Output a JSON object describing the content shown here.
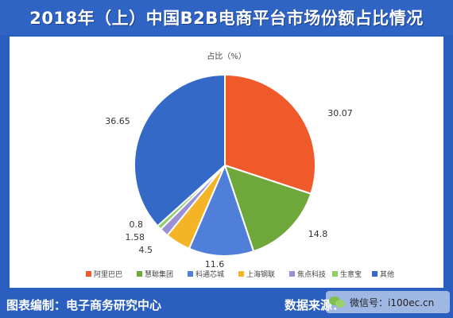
{
  "header": {
    "title": "2018年（上）中国B2B电商平台市场份额占比情况"
  },
  "footer": {
    "compiled_by": "图表编制：电子商务研究中心",
    "source_label": "数据来源："
  },
  "watermark": {
    "text": "微信号：i100ec.cn",
    "icon": "wechat-icon"
  },
  "chart_data": {
    "type": "pie",
    "title": "占比（%）",
    "legend_position": "bottom",
    "series": [
      {
        "name": "阿里巴巴",
        "value": 30.07,
        "label": "30.07",
        "color": "#f05a2a"
      },
      {
        "name": "慧聪集团",
        "value": 14.8,
        "label": "14.8",
        "color": "#6fa83a"
      },
      {
        "name": "科通芯城",
        "value": 11.6,
        "label": "11.6",
        "color": "#4f7fd9"
      },
      {
        "name": "上海钢联",
        "value": 4.5,
        "label": "4.5",
        "color": "#f5b326"
      },
      {
        "name": "焦点科技",
        "value": 1.58,
        "label": "1.58",
        "color": "#9b8fd6"
      },
      {
        "name": "生意宝",
        "value": 0.8,
        "label": "0.8",
        "color": "#8fcf6a"
      },
      {
        "name": "其他",
        "value": 36.65,
        "label": "36.65",
        "color": "#3569c7"
      }
    ]
  }
}
